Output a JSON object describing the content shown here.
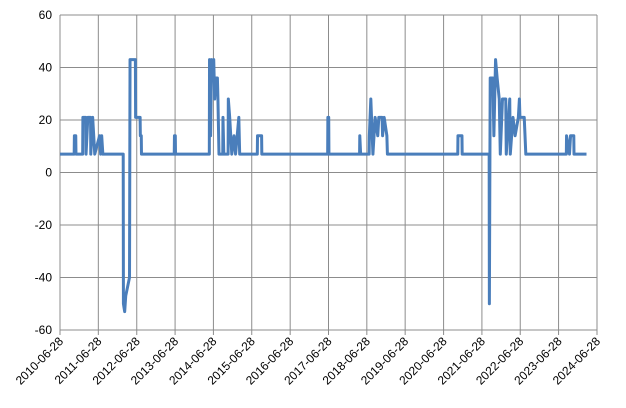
{
  "chart_data": {
    "type": "line",
    "xlim": [
      "2010-06-28",
      "2024-06-28"
    ],
    "xticks": [
      "2010-06-28",
      "2011-06-28",
      "2012-06-28",
      "2013-06-28",
      "2014-06-28",
      "2015-06-28",
      "2016-06-28",
      "2017-06-28",
      "2018-06-28",
      "2019-06-28",
      "2020-06-28",
      "2021-06-28",
      "2022-06-28",
      "2023-06-28",
      "2024-06-28"
    ],
    "ylim": [
      -60,
      60
    ],
    "yticks": [
      -60,
      -40,
      -20,
      0,
      20,
      40,
      60
    ],
    "grid": true,
    "color": "#4a7ebb",
    "x": [
      "2010-06-28",
      "2010-11-10",
      "2010-11-12",
      "2010-11-25",
      "2010-11-27",
      "2011-01-30",
      "2011-02-01",
      "2011-03-01",
      "2011-03-03",
      "2011-03-20",
      "2011-04-15",
      "2011-04-17",
      "2011-05-05",
      "2011-05-25",
      "2011-07-10",
      "2011-07-20",
      "2011-07-30",
      "2011-08-10",
      "2012-02-20",
      "2012-02-22",
      "2012-03-05",
      "2012-03-15",
      "2012-04-20",
      "2012-04-25",
      "2012-06-15",
      "2012-06-17",
      "2012-07-30",
      "2012-08-01",
      "2012-08-10",
      "2012-08-12",
      "2013-06-20",
      "2013-06-22",
      "2013-06-30",
      "2013-07-02",
      "2014-05-20",
      "2014-05-22",
      "2014-06-01",
      "2014-06-10",
      "2014-06-20",
      "2014-07-01",
      "2014-07-10",
      "2014-07-20",
      "2014-08-05",
      "2014-08-10",
      "2014-08-20",
      "2014-09-25",
      "2014-09-27",
      "2014-10-05",
      "2014-11-15",
      "2014-11-17",
      "2014-11-30",
      "2014-12-10",
      "2014-12-20",
      "2015-01-10",
      "2015-01-25",
      "2015-02-25",
      "2015-03-05",
      "2015-08-20",
      "2015-08-22",
      "2015-09-30",
      "2015-10-02",
      "2017-06-20",
      "2017-06-22",
      "2017-06-30",
      "2017-07-02",
      "2018-04-20",
      "2018-04-22",
      "2018-04-30",
      "2018-07-20",
      "2018-07-22",
      "2018-08-05",
      "2018-08-25",
      "2018-09-15",
      "2018-10-10",
      "2018-10-20",
      "2018-11-20",
      "2018-11-25",
      "2018-12-10",
      "2019-01-05",
      "2019-01-10",
      "2020-11-10",
      "2020-11-12",
      "2020-12-20",
      "2020-12-22",
      "2021-09-05",
      "2021-09-07",
      "2021-09-15",
      "2021-10-10",
      "2021-10-20",
      "2021-11-05",
      "2021-11-20",
      "2021-12-10",
      "2021-12-20",
      "2022-01-10",
      "2022-02-10",
      "2022-02-15",
      "2022-03-20",
      "2022-03-25",
      "2022-04-20",
      "2022-05-10",
      "2022-06-10",
      "2022-06-20",
      "2022-06-25",
      "2022-08-05",
      "2022-08-20",
      "2023-09-10",
      "2023-09-12",
      "2023-10-10",
      "2023-10-20",
      "2023-11-20",
      "2023-11-22",
      "2024-03-20"
    ],
    "values": [
      7,
      7,
      14,
      14,
      7,
      7,
      21,
      21,
      7,
      21,
      21,
      7,
      21,
      7,
      14,
      7,
      14,
      7,
      7,
      -50,
      -53,
      -47,
      -40,
      43,
      43,
      21,
      21,
      14,
      14,
      7,
      7,
      14,
      14,
      7,
      7,
      43,
      14,
      43,
      36,
      43,
      28,
      36,
      36,
      28,
      7,
      7,
      21,
      7,
      7,
      28,
      21,
      14,
      7,
      14,
      7,
      21,
      7,
      7,
      14,
      14,
      7,
      7,
      21,
      21,
      7,
      7,
      14,
      7,
      7,
      14,
      28,
      7,
      21,
      14,
      21,
      21,
      14,
      21,
      14,
      7,
      7,
      14,
      14,
      7,
      7,
      -50,
      36,
      36,
      14,
      43,
      36,
      28,
      7,
      28,
      28,
      7,
      28,
      7,
      21,
      14,
      21,
      28,
      21,
      21,
      7,
      7,
      14,
      7,
      14,
      14,
      7,
      7
    ]
  }
}
